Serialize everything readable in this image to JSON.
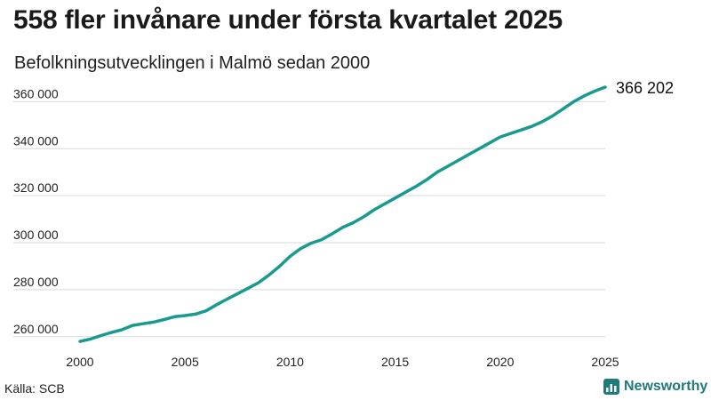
{
  "header": {
    "title": "558 fler invånare under första kvartalet 2025",
    "subtitle": "Befolkningsutvecklingen i Malmö sedan 2000"
  },
  "footer": {
    "source": "Källa: SCB",
    "brand": "Newsworthy",
    "brand_icon": "newsworthy-logo-icon"
  },
  "colors": {
    "line": "#1a9a8f",
    "grid": "#d9d9d9",
    "brand": "#1f7a7a"
  },
  "chart_data": {
    "type": "line",
    "title": "558 fler invånare under första kvartalet 2025",
    "subtitle": "Befolkningsutvecklingen i Malmö sedan 2000",
    "xlabel": "",
    "ylabel": "",
    "xlim": [
      2000,
      2025
    ],
    "ylim": [
      255000,
      370000
    ],
    "grid": true,
    "x_ticks": [
      2000,
      2005,
      2010,
      2015,
      2020,
      2025
    ],
    "x_tick_labels": [
      "2000",
      "2005",
      "2010",
      "2015",
      "2020",
      "2025"
    ],
    "y_ticks": [
      260000,
      280000,
      300000,
      320000,
      340000,
      360000
    ],
    "y_tick_labels": [
      "260 000",
      "280 000",
      "300 000",
      "320 000",
      "340 000",
      "360 000"
    ],
    "end_label": "366 202",
    "series": [
      {
        "x": [
          2000.0,
          2000.5,
          2001.0,
          2001.5,
          2002.0,
          2002.5,
          2003.0,
          2003.5,
          2004.0,
          2004.5,
          2005.0,
          2005.5,
          2006.0,
          2006.5,
          2007.0,
          2007.5,
          2008.0,
          2008.5,
          2009.0,
          2009.5,
          2010.0,
          2010.5,
          2011.0,
          2011.5,
          2012.0,
          2012.5,
          2013.0,
          2013.5,
          2014.0,
          2014.5,
          2015.0,
          2015.5,
          2016.0,
          2016.5,
          2017.0,
          2017.5,
          2018.0,
          2018.5,
          2019.0,
          2019.5,
          2020.0,
          2020.5,
          2021.0,
          2021.5,
          2022.0,
          2022.5,
          2023.0,
          2023.5,
          2024.0,
          2024.5,
          2025.0
        ],
        "values": [
          258000,
          259000,
          260500,
          261800,
          263000,
          264800,
          265500,
          266200,
          267300,
          268500,
          269000,
          269600,
          271000,
          273600,
          276000,
          278300,
          280600,
          283000,
          286300,
          290000,
          294200,
          297500,
          299800,
          301300,
          303800,
          306500,
          308500,
          311000,
          314000,
          316500,
          319000,
          321500,
          324000,
          326800,
          330000,
          332500,
          335000,
          337500,
          340000,
          342500,
          345000,
          346500,
          348000,
          349500,
          351500,
          354000,
          357000,
          360000,
          362500,
          364500,
          366202
        ]
      }
    ]
  }
}
